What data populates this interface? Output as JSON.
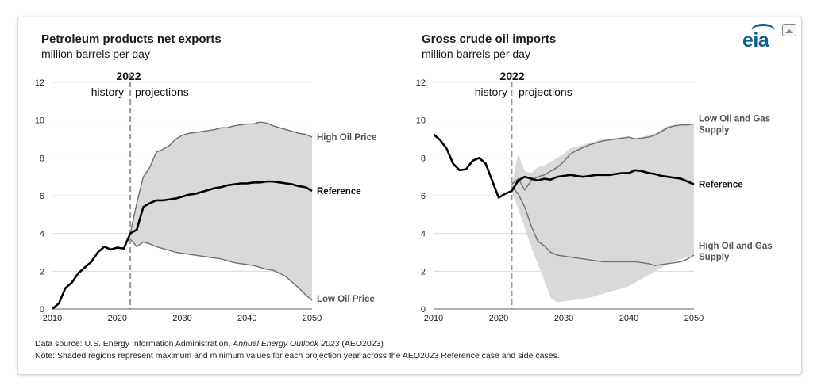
{
  "logo_text": "eia",
  "footnotes": {
    "source_prefix": "Data source: U.S. Energy Information Administration, ",
    "source_title": "Annual Energy Outlook 2023",
    "source_suffix": " (AEO2023)",
    "note": "Note: Shaded regions represent maximum and minimum values for each projection year across the AEO2023 Reference case and side cases."
  },
  "colors": {
    "band": "#d9d9d9",
    "reference": "#000000",
    "divider": "#9a9a9a",
    "grid": "#dcdcdc"
  },
  "chart_data": [
    {
      "type": "area",
      "title": "Petroleum products net exports",
      "subtitle": "million barrels per day",
      "split_year_label": "2022",
      "history_label": "history",
      "projections_label": "projections",
      "split_year": 2022,
      "xlim": [
        2010,
        2050
      ],
      "ylim": [
        0,
        12
      ],
      "xticks": [
        2010,
        2020,
        2030,
        2040,
        2050
      ],
      "yticks": [
        0,
        2,
        4,
        6,
        8,
        10,
        12
      ],
      "grid": "horizontal",
      "series": [
        {
          "name": "Reference",
          "x": [
            2010,
            2011,
            2012,
            2013,
            2014,
            2015,
            2016,
            2017,
            2018,
            2019,
            2020,
            2021,
            2022,
            2023,
            2024,
            2025,
            2026,
            2027,
            2028,
            2029,
            2030,
            2031,
            2032,
            2033,
            2034,
            2035,
            2036,
            2037,
            2038,
            2039,
            2040,
            2041,
            2042,
            2043,
            2044,
            2045,
            2046,
            2047,
            2048,
            2049,
            2050
          ],
          "y": [
            0.0,
            0.3,
            1.1,
            1.4,
            1.9,
            2.2,
            2.5,
            3.0,
            3.3,
            3.15,
            3.25,
            3.2,
            4.0,
            4.2,
            5.4,
            5.6,
            5.75,
            5.75,
            5.8,
            5.85,
            5.95,
            6.05,
            6.1,
            6.2,
            6.3,
            6.4,
            6.45,
            6.55,
            6.6,
            6.65,
            6.65,
            6.7,
            6.7,
            6.75,
            6.75,
            6.7,
            6.65,
            6.6,
            6.5,
            6.45,
            6.25
          ]
        },
        {
          "name": "High Oil Price",
          "x": [
            2022,
            2023,
            2024,
            2025,
            2026,
            2027,
            2028,
            2029,
            2030,
            2031,
            2032,
            2033,
            2034,
            2035,
            2036,
            2037,
            2038,
            2039,
            2040,
            2041,
            2042,
            2043,
            2044,
            2045,
            2046,
            2047,
            2048,
            2049,
            2050
          ],
          "y": [
            4.0,
            5.6,
            7.0,
            7.5,
            8.3,
            8.45,
            8.65,
            9.0,
            9.2,
            9.3,
            9.35,
            9.4,
            9.45,
            9.5,
            9.6,
            9.6,
            9.7,
            9.75,
            9.8,
            9.8,
            9.9,
            9.85,
            9.7,
            9.6,
            9.5,
            9.4,
            9.3,
            9.25,
            9.1
          ]
        },
        {
          "name": "Low Oil Price",
          "x": [
            2022,
            2023,
            2024,
            2025,
            2026,
            2027,
            2028,
            2029,
            2030,
            2031,
            2032,
            2033,
            2034,
            2035,
            2036,
            2037,
            2038,
            2039,
            2040,
            2041,
            2042,
            2043,
            2044,
            2045,
            2046,
            2047,
            2048,
            2049,
            2050
          ],
          "y": [
            3.7,
            3.3,
            3.55,
            3.45,
            3.3,
            3.2,
            3.1,
            3.0,
            2.95,
            2.9,
            2.85,
            2.8,
            2.75,
            2.7,
            2.65,
            2.55,
            2.45,
            2.4,
            2.35,
            2.3,
            2.2,
            2.1,
            2.05,
            1.9,
            1.7,
            1.4,
            1.1,
            0.75,
            0.45
          ]
        }
      ]
    },
    {
      "type": "area",
      "title": "Gross crude oil imports",
      "subtitle": "million barrels per day",
      "split_year_label": "2022",
      "history_label": "history",
      "projections_label": "projections",
      "split_year": 2022,
      "xlim": [
        2010,
        2050
      ],
      "ylim": [
        0,
        12
      ],
      "xticks": [
        2010,
        2020,
        2030,
        2040,
        2050
      ],
      "yticks": [
        0,
        2,
        4,
        6,
        8,
        10,
        12
      ],
      "grid": "horizontal",
      "band_upper": {
        "x": [
          2022,
          2023,
          2024,
          2025,
          2026,
          2027,
          2028,
          2029,
          2030,
          2031,
          2032,
          2033,
          2034,
          2035,
          2036,
          2037,
          2038,
          2039,
          2040,
          2041,
          2042,
          2043,
          2044,
          2045,
          2046,
          2047,
          2048,
          2049,
          2050
        ],
        "y": [
          6.6,
          8.2,
          7.3,
          7.2,
          7.5,
          7.6,
          7.8,
          8.0,
          8.2,
          8.5,
          8.6,
          8.7,
          8.8,
          8.9,
          9.0,
          9.0,
          9.05,
          9.1,
          9.1,
          9.05,
          9.1,
          9.2,
          9.3,
          9.5,
          9.7,
          9.75,
          9.75,
          9.75,
          9.8
        ]
      },
      "band_lower": {
        "x": [
          2022,
          2023,
          2024,
          2025,
          2026,
          2027,
          2028,
          2029,
          2030,
          2031,
          2032,
          2033,
          2034,
          2035,
          2036,
          2037,
          2038,
          2039,
          2040,
          2041,
          2042,
          2043,
          2044,
          2045,
          2046,
          2047,
          2048,
          2049,
          2050
        ],
        "y": [
          6.2,
          5.3,
          4.3,
          3.3,
          2.4,
          1.5,
          0.6,
          0.35,
          0.4,
          0.45,
          0.5,
          0.55,
          0.6,
          0.7,
          0.8,
          0.9,
          1.0,
          1.1,
          1.2,
          1.4,
          1.6,
          1.8,
          2.0,
          2.2,
          2.4,
          2.55,
          2.65,
          2.75,
          2.85
        ]
      },
      "series": [
        {
          "name": "Reference",
          "x": [
            2010,
            2011,
            2012,
            2013,
            2014,
            2015,
            2016,
            2017,
            2018,
            2019,
            2020,
            2021,
            2022,
            2023,
            2024,
            2025,
            2026,
            2027,
            2028,
            2029,
            2030,
            2031,
            2032,
            2033,
            2034,
            2035,
            2036,
            2037,
            2038,
            2039,
            2040,
            2041,
            2042,
            2043,
            2044,
            2045,
            2046,
            2047,
            2048,
            2049,
            2050
          ],
          "y": [
            9.25,
            8.95,
            8.5,
            7.7,
            7.35,
            7.4,
            7.85,
            8.0,
            7.7,
            6.8,
            5.9,
            6.1,
            6.25,
            6.8,
            7.0,
            6.9,
            6.8,
            6.9,
            6.85,
            7.0,
            7.05,
            7.1,
            7.05,
            7.0,
            7.05,
            7.1,
            7.1,
            7.1,
            7.15,
            7.2,
            7.2,
            7.35,
            7.3,
            7.2,
            7.15,
            7.05,
            7.0,
            6.95,
            6.9,
            6.75,
            6.6
          ]
        },
        {
          "name": "Low Oil and Gas Supply",
          "x": [
            2022,
            2023,
            2024,
            2025,
            2026,
            2027,
            2028,
            2029,
            2030,
            2031,
            2032,
            2033,
            2034,
            2035,
            2036,
            2037,
            2038,
            2039,
            2040,
            2041,
            2042,
            2043,
            2044,
            2045,
            2046,
            2047,
            2048,
            2049,
            2050
          ],
          "y": [
            6.6,
            6.9,
            6.3,
            6.8,
            7.0,
            7.1,
            7.3,
            7.5,
            7.8,
            8.2,
            8.4,
            8.55,
            8.7,
            8.8,
            8.9,
            8.95,
            9.0,
            9.05,
            9.1,
            9.0,
            9.05,
            9.1,
            9.2,
            9.4,
            9.6,
            9.7,
            9.75,
            9.75,
            9.8
          ]
        },
        {
          "name": "High Oil and Gas Supply",
          "x": [
            2022,
            2023,
            2024,
            2025,
            2026,
            2027,
            2028,
            2029,
            2030,
            2031,
            2032,
            2033,
            2034,
            2035,
            2036,
            2037,
            2038,
            2039,
            2040,
            2041,
            2042,
            2043,
            2044,
            2045,
            2046,
            2047,
            2048,
            2049,
            2050
          ],
          "y": [
            6.5,
            6.1,
            5.4,
            4.4,
            3.6,
            3.35,
            3.0,
            2.85,
            2.8,
            2.75,
            2.7,
            2.65,
            2.6,
            2.55,
            2.5,
            2.5,
            2.5,
            2.5,
            2.5,
            2.5,
            2.45,
            2.4,
            2.3,
            2.35,
            2.4,
            2.45,
            2.5,
            2.65,
            2.85
          ]
        }
      ],
      "series_labels": {
        "low_supply": [
          "Low Oil and Gas",
          "Supply"
        ],
        "high_supply": [
          "High Oil and Gas",
          "Supply"
        ]
      }
    }
  ]
}
